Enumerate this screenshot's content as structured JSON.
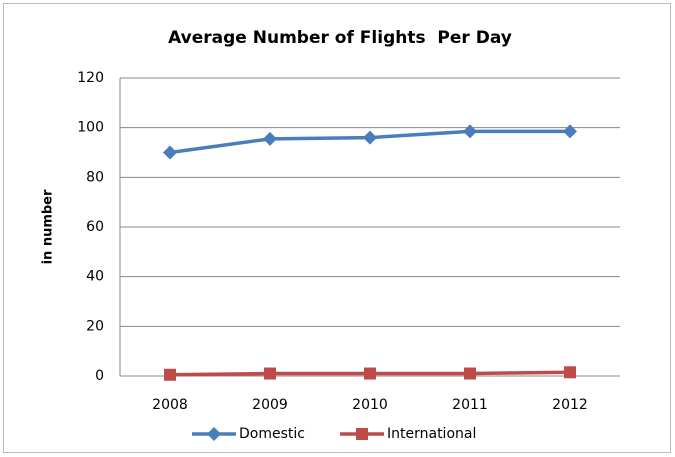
{
  "chart_data": {
    "type": "line",
    "title": "Average Number of Flights  Per Day",
    "y_label": "in number",
    "categories": [
      "2008",
      "2009",
      "2010",
      "2011",
      "2012"
    ],
    "series": [
      {
        "name": "Domestic",
        "color": "#4a7ebb",
        "marker": "diamond",
        "values": [
          90,
          95.5,
          96,
          98.5,
          98.5
        ]
      },
      {
        "name": "International",
        "color": "#be4b48",
        "marker": "square",
        "values": [
          0.5,
          1,
          1,
          1,
          1.5
        ]
      }
    ],
    "ylim": [
      0,
      120
    ],
    "yticks": [
      0,
      20,
      40,
      60,
      80,
      100,
      120
    ],
    "grid": true,
    "legend": "bottom"
  }
}
